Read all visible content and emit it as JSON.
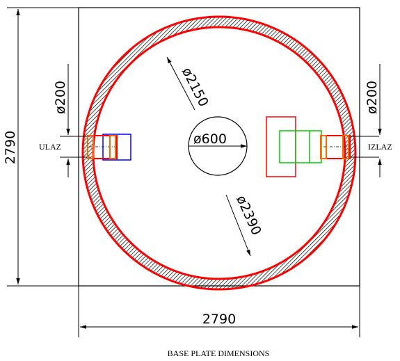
{
  "drawing": {
    "caption": "BASE PLATE DIMENSIONS",
    "plate_width_label": "2790",
    "plate_height_label": "2790",
    "inner_diameter_label": "ø2150",
    "outer_diameter_label": "ø2390",
    "opening_diameter_label": "ø600",
    "inlet": {
      "label": "ULAZ",
      "pipe_diameter_label": "ø200"
    },
    "outlet": {
      "label": "IZLAZ",
      "pipe_diameter_label": "ø200"
    }
  },
  "colors": {
    "outline": "#000000",
    "wall": "#ff0000",
    "inlet_fitting": "#0000ff",
    "outlet_fitting": "#00cc00",
    "pipe": "#ff6600"
  }
}
